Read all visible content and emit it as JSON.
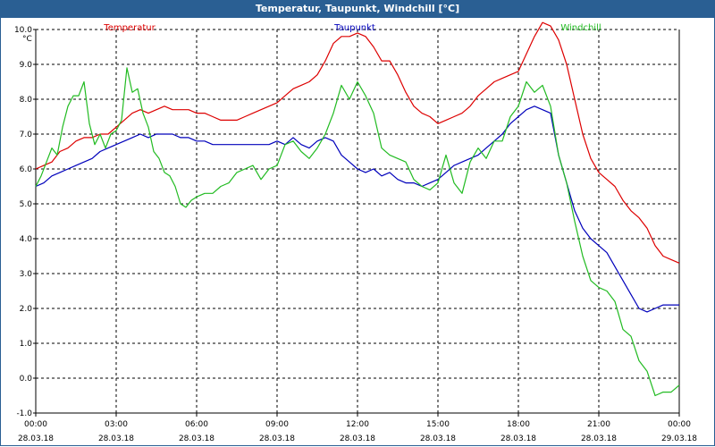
{
  "window": {
    "title": "Temperatur, Taupunkt, Windchill [°C]"
  },
  "chart_data": {
    "type": "line",
    "title": "Temperatur, Taupunkt, Windchill [°C]",
    "ylabel": "°C",
    "ylim": [
      -1.0,
      10.0
    ],
    "yticks": [
      "10.0",
      "9.0",
      "8.0",
      "7.0",
      "6.0",
      "5.0",
      "4.0",
      "3.0",
      "2.0",
      "1.0",
      "0.0",
      "-1.0"
    ],
    "xlim": [
      0,
      24
    ],
    "xticks": [
      {
        "h": 0,
        "time": "00:00",
        "date": "28.03.18"
      },
      {
        "h": 3,
        "time": "03:00",
        "date": "28.03.18"
      },
      {
        "h": 6,
        "time": "06:00",
        "date": "28.03.18"
      },
      {
        "h": 9,
        "time": "09:00",
        "date": "28.03.18"
      },
      {
        "h": 12,
        "time": "12:00",
        "date": "28.03.18"
      },
      {
        "h": 15,
        "time": "15:00",
        "date": "28.03.18"
      },
      {
        "h": 18,
        "time": "18:00",
        "date": "28.03.18"
      },
      {
        "h": 21,
        "time": "21:00",
        "date": "28.03.18"
      },
      {
        "h": 24,
        "time": "00:00",
        "date": "29.03.18"
      }
    ],
    "grid": true,
    "series": [
      {
        "name": "Temperatur",
        "color": "#dd0000",
        "points": [
          [
            0,
            6.0
          ],
          [
            0.3,
            6.1
          ],
          [
            0.6,
            6.2
          ],
          [
            0.9,
            6.5
          ],
          [
            1.2,
            6.6
          ],
          [
            1.5,
            6.8
          ],
          [
            1.8,
            6.9
          ],
          [
            2.1,
            6.9
          ],
          [
            2.4,
            7.0
          ],
          [
            2.7,
            7.0
          ],
          [
            3.0,
            7.2
          ],
          [
            3.3,
            7.4
          ],
          [
            3.6,
            7.6
          ],
          [
            3.9,
            7.7
          ],
          [
            4.2,
            7.6
          ],
          [
            4.5,
            7.7
          ],
          [
            4.8,
            7.8
          ],
          [
            5.1,
            7.7
          ],
          [
            5.4,
            7.7
          ],
          [
            5.7,
            7.7
          ],
          [
            6.0,
            7.6
          ],
          [
            6.3,
            7.6
          ],
          [
            6.6,
            7.5
          ],
          [
            6.9,
            7.4
          ],
          [
            7.2,
            7.4
          ],
          [
            7.5,
            7.4
          ],
          [
            7.8,
            7.5
          ],
          [
            8.1,
            7.6
          ],
          [
            8.4,
            7.7
          ],
          [
            8.7,
            7.8
          ],
          [
            9.0,
            7.9
          ],
          [
            9.3,
            8.1
          ],
          [
            9.6,
            8.3
          ],
          [
            9.9,
            8.4
          ],
          [
            10.2,
            8.5
          ],
          [
            10.5,
            8.7
          ],
          [
            10.8,
            9.1
          ],
          [
            11.1,
            9.6
          ],
          [
            11.4,
            9.8
          ],
          [
            11.7,
            9.8
          ],
          [
            12.0,
            9.9
          ],
          [
            12.3,
            9.8
          ],
          [
            12.6,
            9.5
          ],
          [
            12.9,
            9.1
          ],
          [
            13.2,
            9.1
          ],
          [
            13.5,
            8.7
          ],
          [
            13.8,
            8.2
          ],
          [
            14.1,
            7.8
          ],
          [
            14.4,
            7.6
          ],
          [
            14.7,
            7.5
          ],
          [
            15.0,
            7.3
          ],
          [
            15.3,
            7.4
          ],
          [
            15.6,
            7.5
          ],
          [
            15.9,
            7.6
          ],
          [
            16.2,
            7.8
          ],
          [
            16.5,
            8.1
          ],
          [
            16.8,
            8.3
          ],
          [
            17.1,
            8.5
          ],
          [
            17.4,
            8.6
          ],
          [
            17.7,
            8.7
          ],
          [
            18.0,
            8.8
          ],
          [
            18.3,
            9.3
          ],
          [
            18.6,
            9.8
          ],
          [
            18.9,
            10.2
          ],
          [
            19.2,
            10.1
          ],
          [
            19.5,
            9.7
          ],
          [
            19.8,
            9.0
          ],
          [
            20.1,
            8.0
          ],
          [
            20.4,
            7.0
          ],
          [
            20.7,
            6.3
          ],
          [
            21.0,
            5.9
          ],
          [
            21.3,
            5.7
          ],
          [
            21.6,
            5.5
          ],
          [
            21.9,
            5.1
          ],
          [
            22.2,
            4.8
          ],
          [
            22.5,
            4.6
          ],
          [
            22.8,
            4.3
          ],
          [
            23.1,
            3.8
          ],
          [
            23.4,
            3.5
          ],
          [
            23.7,
            3.4
          ],
          [
            24.0,
            3.3
          ]
        ]
      },
      {
        "name": "Taupunkt",
        "color": "#0000bb",
        "points": [
          [
            0,
            5.5
          ],
          [
            0.3,
            5.6
          ],
          [
            0.6,
            5.8
          ],
          [
            0.9,
            5.9
          ],
          [
            1.2,
            6.0
          ],
          [
            1.5,
            6.1
          ],
          [
            1.8,
            6.2
          ],
          [
            2.1,
            6.3
          ],
          [
            2.4,
            6.5
          ],
          [
            2.7,
            6.6
          ],
          [
            3.0,
            6.7
          ],
          [
            3.3,
            6.8
          ],
          [
            3.6,
            6.9
          ],
          [
            3.9,
            7.0
          ],
          [
            4.2,
            6.9
          ],
          [
            4.5,
            7.0
          ],
          [
            4.8,
            7.0
          ],
          [
            5.1,
            7.0
          ],
          [
            5.4,
            6.9
          ],
          [
            5.7,
            6.9
          ],
          [
            6.0,
            6.8
          ],
          [
            6.3,
            6.8
          ],
          [
            6.6,
            6.7
          ],
          [
            6.9,
            6.7
          ],
          [
            7.2,
            6.7
          ],
          [
            7.5,
            6.7
          ],
          [
            7.8,
            6.7
          ],
          [
            8.1,
            6.7
          ],
          [
            8.4,
            6.7
          ],
          [
            8.7,
            6.7
          ],
          [
            9.0,
            6.8
          ],
          [
            9.3,
            6.7
          ],
          [
            9.6,
            6.9
          ],
          [
            9.9,
            6.7
          ],
          [
            10.2,
            6.6
          ],
          [
            10.5,
            6.8
          ],
          [
            10.8,
            6.9
          ],
          [
            11.1,
            6.8
          ],
          [
            11.4,
            6.4
          ],
          [
            11.7,
            6.2
          ],
          [
            12.0,
            6.0
          ],
          [
            12.3,
            5.9
          ],
          [
            12.6,
            6.0
          ],
          [
            12.9,
            5.8
          ],
          [
            13.2,
            5.9
          ],
          [
            13.5,
            5.7
          ],
          [
            13.8,
            5.6
          ],
          [
            14.1,
            5.6
          ],
          [
            14.4,
            5.5
          ],
          [
            14.7,
            5.6
          ],
          [
            15.0,
            5.7
          ],
          [
            15.3,
            5.9
          ],
          [
            15.6,
            6.1
          ],
          [
            15.9,
            6.2
          ],
          [
            16.2,
            6.3
          ],
          [
            16.5,
            6.4
          ],
          [
            16.8,
            6.6
          ],
          [
            17.1,
            6.8
          ],
          [
            17.4,
            7.0
          ],
          [
            17.7,
            7.3
          ],
          [
            18.0,
            7.5
          ],
          [
            18.3,
            7.7
          ],
          [
            18.6,
            7.8
          ],
          [
            18.9,
            7.7
          ],
          [
            19.2,
            7.6
          ],
          [
            19.5,
            6.4
          ],
          [
            19.8,
            5.6
          ],
          [
            20.1,
            4.8
          ],
          [
            20.4,
            4.3
          ],
          [
            20.7,
            4.0
          ],
          [
            21.0,
            3.8
          ],
          [
            21.3,
            3.6
          ],
          [
            21.6,
            3.2
          ],
          [
            21.9,
            2.8
          ],
          [
            22.2,
            2.4
          ],
          [
            22.5,
            2.0
          ],
          [
            22.8,
            1.9
          ],
          [
            23.1,
            2.0
          ],
          [
            23.4,
            2.1
          ],
          [
            23.7,
            2.1
          ],
          [
            24.0,
            2.1
          ]
        ]
      },
      {
        "name": "Windchill",
        "color": "#22bb22",
        "points": [
          [
            0,
            5.5
          ],
          [
            0.2,
            5.8
          ],
          [
            0.4,
            6.2
          ],
          [
            0.6,
            6.6
          ],
          [
            0.8,
            6.4
          ],
          [
            1.0,
            7.2
          ],
          [
            1.2,
            7.8
          ],
          [
            1.4,
            8.1
          ],
          [
            1.6,
            8.1
          ],
          [
            1.8,
            8.5
          ],
          [
            2.0,
            7.3
          ],
          [
            2.2,
            6.7
          ],
          [
            2.4,
            7.0
          ],
          [
            2.6,
            6.6
          ],
          [
            2.8,
            7.0
          ],
          [
            3.0,
            7.1
          ],
          [
            3.2,
            7.4
          ],
          [
            3.4,
            8.9
          ],
          [
            3.6,
            8.2
          ],
          [
            3.8,
            8.3
          ],
          [
            4.0,
            7.6
          ],
          [
            4.2,
            7.2
          ],
          [
            4.4,
            6.5
          ],
          [
            4.6,
            6.3
          ],
          [
            4.8,
            5.9
          ],
          [
            5.0,
            5.8
          ],
          [
            5.2,
            5.5
          ],
          [
            5.4,
            5.0
          ],
          [
            5.6,
            4.9
          ],
          [
            5.8,
            5.1
          ],
          [
            6.0,
            5.2
          ],
          [
            6.3,
            5.3
          ],
          [
            6.6,
            5.3
          ],
          [
            6.9,
            5.5
          ],
          [
            7.2,
            5.6
          ],
          [
            7.5,
            5.9
          ],
          [
            7.8,
            6.0
          ],
          [
            8.1,
            6.1
          ],
          [
            8.4,
            5.7
          ],
          [
            8.7,
            6.0
          ],
          [
            9.0,
            6.1
          ],
          [
            9.3,
            6.7
          ],
          [
            9.6,
            6.8
          ],
          [
            9.9,
            6.5
          ],
          [
            10.2,
            6.3
          ],
          [
            10.5,
            6.6
          ],
          [
            10.8,
            7.0
          ],
          [
            11.1,
            7.6
          ],
          [
            11.4,
            8.4
          ],
          [
            11.7,
            8.0
          ],
          [
            12.0,
            8.5
          ],
          [
            12.3,
            8.1
          ],
          [
            12.6,
            7.6
          ],
          [
            12.9,
            6.6
          ],
          [
            13.2,
            6.4
          ],
          [
            13.5,
            6.3
          ],
          [
            13.8,
            6.2
          ],
          [
            14.1,
            5.7
          ],
          [
            14.4,
            5.5
          ],
          [
            14.7,
            5.4
          ],
          [
            15.0,
            5.6
          ],
          [
            15.3,
            6.4
          ],
          [
            15.6,
            5.6
          ],
          [
            15.9,
            5.3
          ],
          [
            16.2,
            6.2
          ],
          [
            16.5,
            6.6
          ],
          [
            16.8,
            6.3
          ],
          [
            17.1,
            6.8
          ],
          [
            17.4,
            6.8
          ],
          [
            17.7,
            7.5
          ],
          [
            18.0,
            7.8
          ],
          [
            18.3,
            8.5
          ],
          [
            18.6,
            8.2
          ],
          [
            18.9,
            8.4
          ],
          [
            19.2,
            7.8
          ],
          [
            19.5,
            6.4
          ],
          [
            19.8,
            5.6
          ],
          [
            20.1,
            4.5
          ],
          [
            20.4,
            3.5
          ],
          [
            20.7,
            2.8
          ],
          [
            21.0,
            2.6
          ],
          [
            21.3,
            2.5
          ],
          [
            21.6,
            2.2
          ],
          [
            21.9,
            1.4
          ],
          [
            22.2,
            1.2
          ],
          [
            22.5,
            0.5
          ],
          [
            22.8,
            0.2
          ],
          [
            23.1,
            -0.5
          ],
          [
            23.4,
            -0.4
          ],
          [
            23.7,
            -0.4
          ],
          [
            24.0,
            -0.2
          ]
        ]
      }
    ]
  }
}
